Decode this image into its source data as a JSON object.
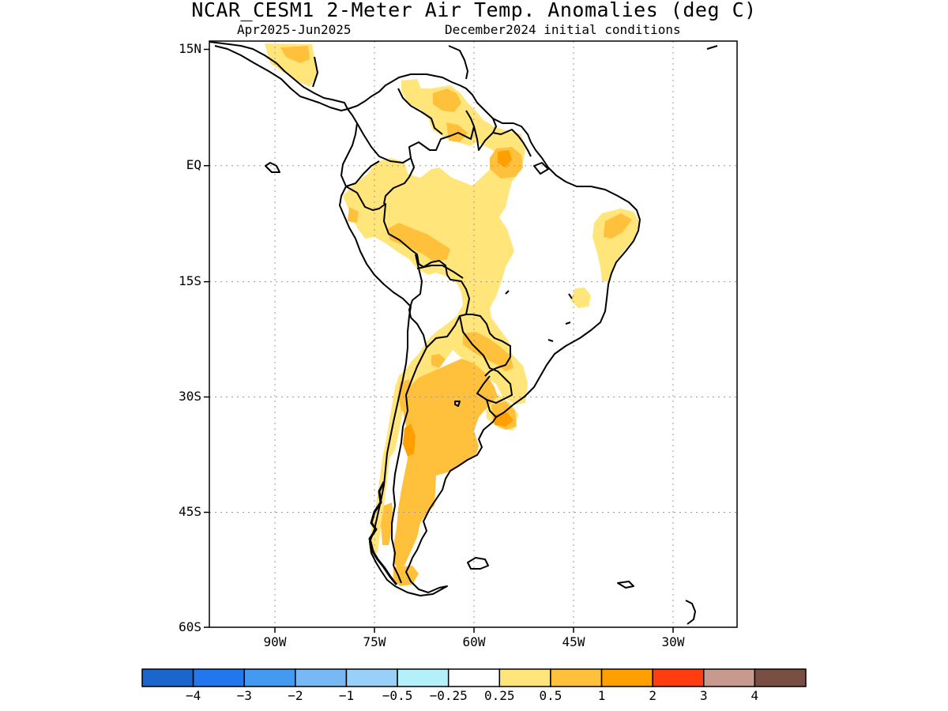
{
  "title": "NCAR_CESM1 2-Meter Air Temp. Anomalies (deg C)",
  "subtitle_left": "Apr2025-Jun2025",
  "subtitle_right": "December2024 initial conditions",
  "axes": {
    "y_labels": [
      "15N",
      "EQ",
      "15S",
      "30S",
      "45S",
      "60S"
    ],
    "x_labels": [
      "90W",
      "75W",
      "60W",
      "45W",
      "30W"
    ],
    "lat_range": [
      -60,
      15
    ],
    "lon_range": [
      -100,
      -20
    ],
    "grid": "dotted"
  },
  "colorbar": {
    "labels": [
      "-4",
      "-3",
      "-2",
      "-1",
      "-0.5",
      "-0.25",
      "0.25",
      "0.5",
      "1",
      "2",
      "3",
      "4"
    ],
    "colors": [
      "#1a66cc",
      "#2277ee",
      "#4499f0",
      "#77b8f5",
      "#99d0fa",
      "#b4f0fa",
      "#ffffff",
      "#ffe57a",
      "#ffc03c",
      "#ffa000",
      "#ff3d10",
      "#c89a8e",
      "#7a4f43"
    ]
  },
  "anomaly_colors": {
    "0.25_to_0.5": "#ffe57a",
    "0.5_to_1": "#ffc03c",
    "1_to_2": "#ffa000"
  }
}
